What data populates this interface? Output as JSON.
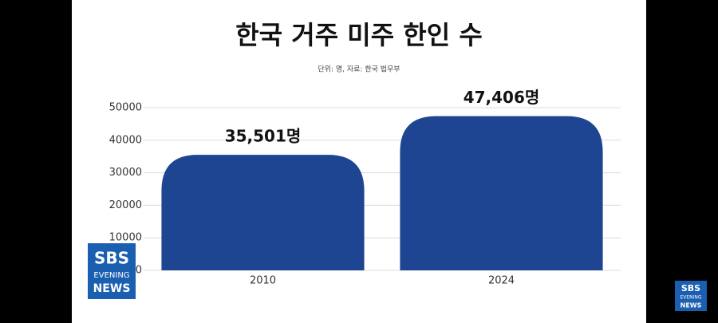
{
  "chart_data": {
    "type": "bar",
    "title": "한국 거주 미주 한인 수",
    "subtitle": "단위: 명, 자료: 한국 법무부",
    "categories": [
      "2010",
      "2024"
    ],
    "values": [
      35501,
      47406
    ],
    "value_labels": [
      "35,501명",
      "47,406명"
    ],
    "color": "#1d4592",
    "ylim": [
      0,
      50000
    ],
    "yticks": [
      0,
      10000,
      20000,
      30000,
      40000,
      50000
    ],
    "grid": true
  },
  "broadcaster_logo": {
    "brand": "SBS",
    "line1": "EVENING",
    "line2": "NEWS"
  }
}
